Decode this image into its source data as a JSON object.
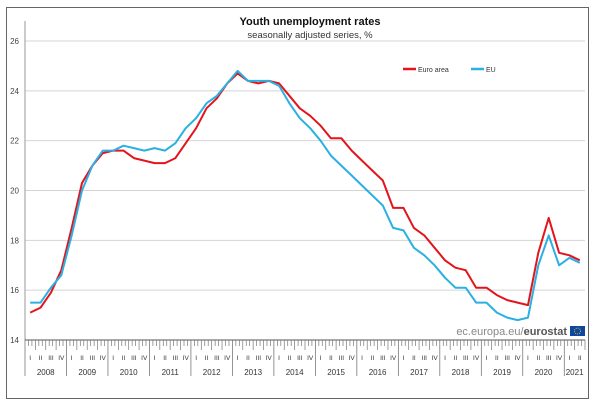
{
  "chart_data": {
    "type": "line",
    "title": "Youth unemployment rates",
    "subtitle": "seasonally adjusted series, %",
    "ylim": [
      14,
      26
    ],
    "yticks": [
      14,
      16,
      18,
      20,
      22,
      24,
      26
    ],
    "grid": true,
    "legend_placement": "top-right",
    "years": [
      "2008",
      "2009",
      "2010",
      "2011",
      "2012",
      "2013",
      "2014",
      "2015",
      "2016",
      "2017",
      "2018",
      "2019",
      "2020",
      "2021"
    ],
    "quarter_labels": [
      "I",
      "II",
      "III",
      "IV"
    ],
    "x": [
      "2008Q1",
      "2008Q2",
      "2008Q3",
      "2008Q4",
      "2009Q1",
      "2009Q2",
      "2009Q3",
      "2009Q4",
      "2010Q1",
      "2010Q2",
      "2010Q3",
      "2010Q4",
      "2011Q1",
      "2011Q2",
      "2011Q3",
      "2011Q4",
      "2012Q1",
      "2012Q2",
      "2012Q3",
      "2012Q4",
      "2013Q1",
      "2013Q2",
      "2013Q3",
      "2013Q4",
      "2014Q1",
      "2014Q2",
      "2014Q3",
      "2014Q4",
      "2015Q1",
      "2015Q2",
      "2015Q3",
      "2015Q4",
      "2016Q1",
      "2016Q2",
      "2016Q3",
      "2016Q4",
      "2017Q1",
      "2017Q2",
      "2017Q3",
      "2017Q4",
      "2018Q1",
      "2018Q2",
      "2018Q3",
      "2018Q4",
      "2019Q1",
      "2019Q2",
      "2019Q3",
      "2019Q4",
      "2020Q1",
      "2020Q2",
      "2020Q3",
      "2020Q4",
      "2021Q1",
      "2021Q2"
    ],
    "series": [
      {
        "name": "Euro area",
        "color": "#e3141c",
        "values": [
          15.1,
          15.3,
          15.9,
          16.8,
          18.5,
          20.3,
          21.0,
          21.5,
          21.6,
          21.6,
          21.3,
          21.2,
          21.1,
          21.1,
          21.3,
          21.9,
          22.5,
          23.3,
          23.7,
          24.3,
          24.7,
          24.4,
          24.3,
          24.4,
          24.3,
          23.8,
          23.3,
          23.0,
          22.6,
          22.1,
          22.1,
          21.6,
          21.2,
          20.8,
          20.4,
          19.3,
          19.3,
          18.5,
          18.2,
          17.7,
          17.2,
          16.9,
          16.8,
          16.1,
          16.1,
          15.8,
          15.6,
          15.5,
          15.4,
          17.5,
          18.9,
          17.5,
          17.4,
          17.2
        ]
      },
      {
        "name": "EU",
        "color": "#2ab0e2",
        "values": [
          15.5,
          15.5,
          16.1,
          16.6,
          18.2,
          20.0,
          21.0,
          21.6,
          21.6,
          21.8,
          21.7,
          21.6,
          21.7,
          21.6,
          21.9,
          22.5,
          22.9,
          23.5,
          23.8,
          24.3,
          24.8,
          24.4,
          24.4,
          24.4,
          24.2,
          23.5,
          22.9,
          22.5,
          22.0,
          21.4,
          21.0,
          20.6,
          20.2,
          19.8,
          19.4,
          18.5,
          18.4,
          17.7,
          17.4,
          17.0,
          16.5,
          16.1,
          16.1,
          15.5,
          15.5,
          15.1,
          14.9,
          14.8,
          14.9,
          17.0,
          18.2,
          17.0,
          17.3,
          17.1
        ]
      }
    ]
  },
  "watermark": {
    "prefix": "ec.europa.eu/",
    "brand": "eurostat"
  }
}
